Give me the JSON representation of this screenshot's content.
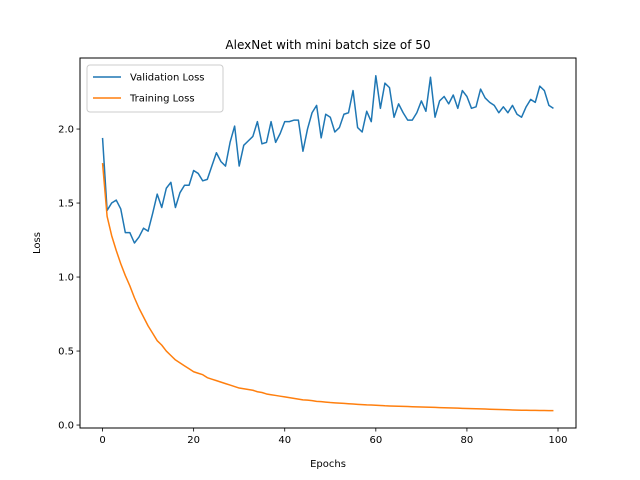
{
  "chart_data": {
    "type": "line",
    "title": "AlexNet with mini batch size of 50",
    "xlabel": "Epochs",
    "ylabel": "Loss",
    "xlim": [
      -4.95,
      103.95
    ],
    "ylim": [
      -0.02,
      2.48
    ],
    "xticks": [
      0,
      20,
      40,
      60,
      80,
      100
    ],
    "yticks": [
      0.0,
      0.5,
      1.0,
      1.5,
      2.0
    ],
    "legend_position": "upper-left",
    "grid": false,
    "series": [
      {
        "name": "Validation Loss",
        "color": "#1f77b4",
        "values": [
          1.94,
          1.45,
          1.5,
          1.52,
          1.46,
          1.3,
          1.3,
          1.23,
          1.27,
          1.33,
          1.31,
          1.43,
          1.56,
          1.47,
          1.6,
          1.64,
          1.47,
          1.57,
          1.62,
          1.62,
          1.72,
          1.7,
          1.65,
          1.66,
          1.75,
          1.84,
          1.78,
          1.75,
          1.91,
          2.02,
          1.75,
          1.89,
          1.92,
          1.95,
          2.05,
          1.9,
          1.91,
          2.05,
          1.91,
          1.97,
          2.05,
          2.05,
          2.06,
          2.06,
          1.85,
          2.0,
          2.11,
          2.16,
          1.94,
          2.1,
          2.08,
          1.98,
          2.01,
          2.1,
          2.11,
          2.26,
          2.01,
          1.98,
          2.12,
          2.05,
          2.36,
          2.14,
          2.31,
          2.28,
          2.08,
          2.17,
          2.11,
          2.06,
          2.06,
          2.11,
          2.19,
          2.12,
          2.35,
          2.08,
          2.19,
          2.22,
          2.17,
          2.23,
          2.14,
          2.26,
          2.22,
          2.14,
          2.15,
          2.27,
          2.21,
          2.18,
          2.16,
          2.11,
          2.15,
          2.11,
          2.16,
          2.1,
          2.08,
          2.15,
          2.2,
          2.18,
          2.29,
          2.26,
          2.16,
          2.14
        ]
      },
      {
        "name": "Training Loss",
        "color": "#ff7f0e",
        "values": [
          1.77,
          1.41,
          1.28,
          1.18,
          1.09,
          1.01,
          0.94,
          0.86,
          0.79,
          0.73,
          0.67,
          0.62,
          0.57,
          0.54,
          0.5,
          0.47,
          0.44,
          0.42,
          0.4,
          0.38,
          0.36,
          0.35,
          0.34,
          0.32,
          0.31,
          0.3,
          0.29,
          0.28,
          0.27,
          0.26,
          0.25,
          0.245,
          0.24,
          0.235,
          0.225,
          0.22,
          0.21,
          0.205,
          0.2,
          0.195,
          0.19,
          0.185,
          0.18,
          0.175,
          0.17,
          0.168,
          0.165,
          0.16,
          0.158,
          0.155,
          0.152,
          0.15,
          0.148,
          0.146,
          0.144,
          0.142,
          0.14,
          0.138,
          0.136,
          0.135,
          0.134,
          0.132,
          0.13,
          0.129,
          0.128,
          0.127,
          0.126,
          0.125,
          0.124,
          0.123,
          0.122,
          0.121,
          0.12,
          0.119,
          0.118,
          0.117,
          0.116,
          0.115,
          0.114,
          0.113,
          0.112,
          0.111,
          0.11,
          0.109,
          0.108,
          0.107,
          0.106,
          0.105,
          0.104,
          0.103,
          0.102,
          0.101,
          0.1,
          0.1,
          0.099,
          0.099,
          0.098,
          0.098,
          0.097,
          0.097
        ]
      }
    ]
  }
}
